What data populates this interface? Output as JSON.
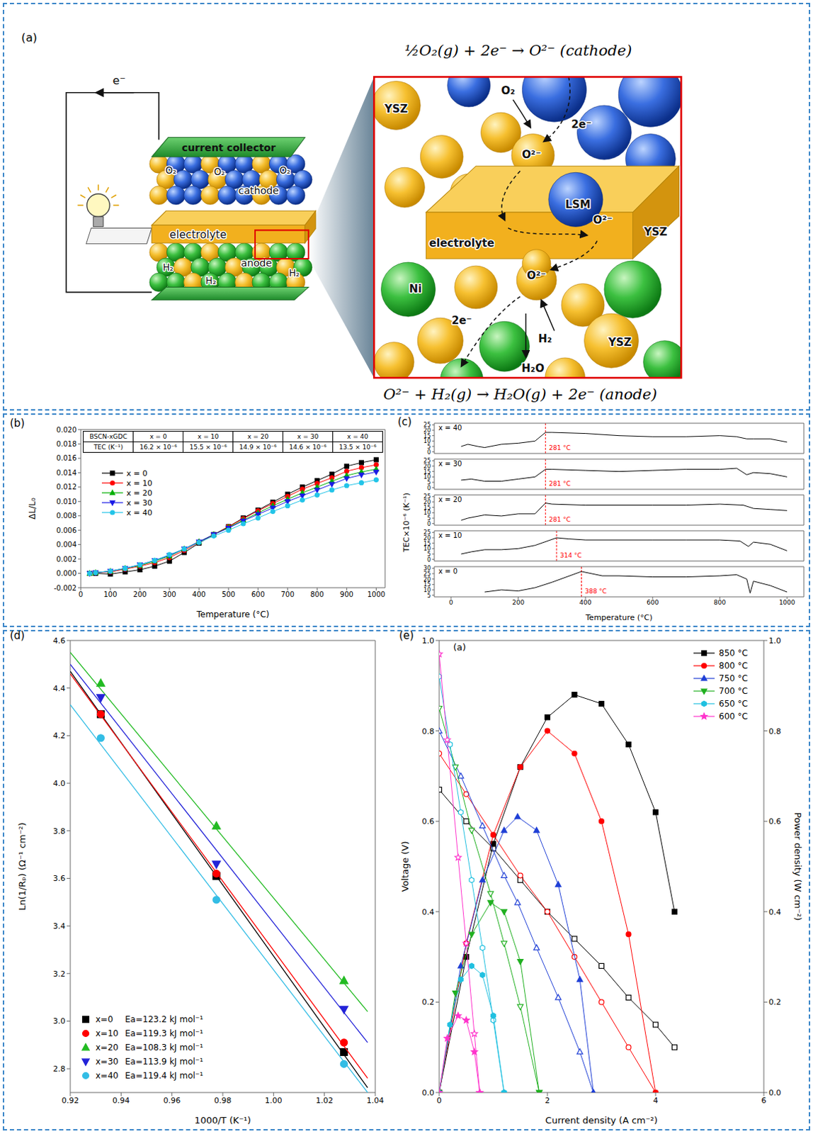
{
  "diagram": {
    "panel": "(a)",
    "equations": {
      "cathode": "½O₂(g) + 2e⁻ → O²⁻ (cathode)",
      "anode": "O²⁻ + H₂(g) → H₂O(g) + 2e⁻ (anode)"
    },
    "cell": {
      "electron": "e⁻",
      "current_collector": "current collector",
      "cathode": "cathode",
      "electrolyte": "electrolyte",
      "anode": "anode",
      "cathode_gas": "O₂",
      "anode_gas": "H₂"
    },
    "zoom": {
      "labels": [
        "YSZ",
        "O₂",
        "2e⁻",
        "O²⁻",
        "LSM",
        "YSZ",
        "electrolyte",
        "O²⁻",
        "Ni",
        "O²⁻",
        "2e⁻",
        "H₂",
        "YSZ",
        "H₂O"
      ]
    }
  },
  "chart_data": [
    {
      "type": "line",
      "panel": "(b)",
      "xlabel": "Temperature (°C)",
      "ylabel": "ΔL/L₀",
      "xlim": [
        0,
        1030
      ],
      "xticks": [
        0,
        100,
        200,
        300,
        400,
        500,
        600,
        700,
        800,
        900,
        1000
      ],
      "ylim": [
        -0.002,
        0.02
      ],
      "yticks": [
        -0.002,
        {
          "value": 0,
          "label": "0.000"
        },
        0.002,
        0.004,
        0.006,
        0.008,
        {
          "value": 0.01,
          "label": "0.010"
        },
        0.012,
        0.014,
        0.016,
        0.018,
        {
          "value": 0.02,
          "label": "0.020"
        }
      ],
      "legend": "upper left",
      "x": [
        30,
        50,
        100,
        150,
        200,
        250,
        300,
        350,
        400,
        450,
        500,
        550,
        600,
        650,
        700,
        750,
        800,
        850,
        900,
        950,
        1000
      ],
      "series": [
        {
          "name": "x = 0",
          "color": "#000000",
          "marker": "square",
          "values": [
            0,
            0,
            -0.0001,
            0.0002,
            0.0005,
            0.001,
            0.0017,
            0.0029,
            0.0042,
            0.0054,
            0.0065,
            0.0077,
            0.0088,
            0.0099,
            0.011,
            0.012,
            0.0129,
            0.0138,
            0.0149,
            0.0154,
            0.0158
          ]
        },
        {
          "name": "x = 10",
          "color": "#ff0000",
          "marker": "circle",
          "values": [
            0,
            0.0001,
            0.0002,
            0.0006,
            0.001,
            0.0015,
            0.0022,
            0.0032,
            0.0043,
            0.0054,
            0.0065,
            0.0076,
            0.0087,
            0.0097,
            0.0107,
            0.0117,
            0.0125,
            0.0133,
            0.0142,
            0.0147,
            0.0151
          ]
        },
        {
          "name": "x = 20",
          "color": "#00b000",
          "marker": "triangle",
          "values": [
            0,
            0.0001,
            0.0003,
            0.0007,
            0.0011,
            0.0017,
            0.0024,
            0.0034,
            0.0044,
            0.0054,
            0.0064,
            0.0074,
            0.0084,
            0.0094,
            0.0103,
            0.0112,
            0.012,
            0.0128,
            0.0136,
            0.0141,
            0.0145
          ]
        },
        {
          "name": "x = 30",
          "color": "#1a1ae6",
          "marker": "triangle-down",
          "values": [
            0,
            0.0001,
            0.0003,
            0.0007,
            0.0012,
            0.0018,
            0.0025,
            0.0034,
            0.0044,
            0.0054,
            0.0063,
            0.0073,
            0.0082,
            0.0091,
            0.01,
            0.0108,
            0.0116,
            0.0124,
            0.0132,
            0.0137,
            0.0141
          ]
        },
        {
          "name": "x = 40",
          "color": "#22c4e8",
          "marker": "circle",
          "values": [
            0,
            0.0001,
            0.0003,
            0.0007,
            0.0012,
            0.0018,
            0.0026,
            0.0034,
            0.0043,
            0.0052,
            0.006,
            0.0069,
            0.0077,
            0.0086,
            0.0094,
            0.0102,
            0.0109,
            0.0116,
            0.0122,
            0.0126,
            0.013
          ]
        }
      ],
      "table": {
        "header": [
          "BSCN-xGDC",
          "x = 0",
          "x = 10",
          "x = 20",
          "x = 30",
          "x = 40"
        ],
        "rows": [
          [
            "TEC (K⁻¹)",
            "16.2 × 10⁻⁶",
            "15.5 × 10⁻⁶",
            "14.9 × 10⁻⁶",
            "14.6 × 10⁻⁶",
            "13.5 × 10⁻⁶"
          ]
        ]
      }
    },
    {
      "type": "line",
      "panel": "(c)",
      "title": "x = 40",
      "color": "#000000",
      "xlim": [
        -50,
        1050
      ],
      "ylim": [
        -1.5,
        26.5
      ],
      "yticks": [
        0,
        5,
        10,
        15,
        20,
        25
      ],
      "tick_labels": "y",
      "x": [
        30,
        50,
        80,
        100,
        150,
        200,
        250,
        281,
        300,
        400,
        500,
        600,
        700,
        800,
        850,
        880,
        900,
        950,
        1000
      ],
      "values": [
        5,
        7,
        5,
        4,
        7,
        8,
        10,
        18,
        18,
        17,
        15,
        14,
        14,
        15,
        14,
        12,
        12,
        12,
        9
      ],
      "annotations": [
        {
          "x": 281,
          "label": "281 °C"
        }
      ]
    },
    {
      "type": "line",
      "title": "x = 30",
      "color": "#000000",
      "xlim": [
        -50,
        1050
      ],
      "ylim": [
        -1.5,
        26.5
      ],
      "yticks": [
        0,
        5,
        10,
        15,
        20,
        25
      ],
      "tick_labels": "y",
      "x": [
        30,
        60,
        100,
        150,
        200,
        250,
        281,
        300,
        400,
        500,
        600,
        700,
        800,
        850,
        880,
        900,
        950,
        1000
      ],
      "values": [
        7,
        8,
        6,
        6,
        8,
        10,
        17,
        17,
        16,
        15,
        16,
        17,
        17,
        18,
        12,
        14,
        13,
        10
      ],
      "annotations": [
        {
          "x": 281,
          "label": "281 °C"
        }
      ]
    },
    {
      "type": "line",
      "title": "x = 20",
      "ylabel": "TEC×10⁻⁶ (K⁻¹)",
      "color": "#000000",
      "xlim": [
        -50,
        1050
      ],
      "ylim": [
        -1.5,
        26.5
      ],
      "yticks": [
        0,
        5,
        10,
        15,
        20,
        25
      ],
      "tick_labels": "y",
      "x": [
        30,
        50,
        100,
        150,
        200,
        250,
        281,
        300,
        400,
        500,
        600,
        700,
        800,
        870,
        900,
        950,
        1000
      ],
      "values": [
        3,
        5,
        8,
        7,
        9,
        9,
        19,
        18,
        17,
        17,
        17,
        17,
        18,
        17,
        14,
        13,
        12
      ],
      "annotations": [
        {
          "x": 281,
          "label": "281 °C"
        }
      ]
    },
    {
      "type": "line",
      "title": "x = 10",
      "color": "#000000",
      "xlim": [
        -50,
        1050
      ],
      "ylim": [
        -1.5,
        26.5
      ],
      "yticks": [
        0,
        5,
        10,
        15,
        20,
        25
      ],
      "tick_labels": "y",
      "x": [
        30,
        60,
        100,
        150,
        200,
        250,
        314,
        350,
        400,
        500,
        600,
        700,
        800,
        860,
        885,
        900,
        950,
        1000
      ],
      "values": [
        5,
        7,
        9,
        9,
        10,
        13,
        20,
        19,
        18,
        18,
        18,
        18,
        18,
        17,
        12,
        16,
        14,
        8
      ],
      "annotations": [
        {
          "x": 314,
          "label": "314 °C"
        }
      ]
    },
    {
      "type": "line",
      "title": "x = 0",
      "xlabel": "Temperature (°C)",
      "color": "#000000",
      "xlim": [
        -50,
        1050
      ],
      "xticks": [
        0,
        200,
        400,
        600,
        800,
        1000
      ],
      "ylim": [
        3.5,
        31.5
      ],
      "yticks": [
        5,
        10,
        15,
        20,
        25,
        30
      ],
      "x": [
        100,
        150,
        200,
        250,
        300,
        388,
        450,
        500,
        600,
        700,
        800,
        850,
        880,
        890,
        900,
        950,
        1000
      ],
      "values": [
        8,
        10,
        9,
        12,
        17,
        27,
        23,
        23,
        22,
        22,
        23,
        24,
        20,
        7,
        18,
        14,
        8
      ],
      "annotations": [
        {
          "x": 388,
          "label": "388 °C"
        }
      ]
    },
    {
      "type": "scatter",
      "panel": "(d)",
      "xlabel": "1000/T (K⁻¹)",
      "ylabel": "Ln(1/Rₚ) (Ω⁻¹ cm⁻²)",
      "xlim": [
        0.92,
        1.04
      ],
      "xticks": [
        0.92,
        0.94,
        0.96,
        0.98,
        {
          "value": 1,
          "label": "1.00"
        },
        1.02,
        1.04
      ],
      "ylim": [
        2.7,
        4.6
      ],
      "yticks": [
        2.8,
        {
          "value": 3,
          "label": "3.0"
        },
        3.2,
        3.4,
        3.6,
        3.8,
        {
          "value": 4,
          "label": "4.0"
        },
        4.2,
        4.4,
        4.6
      ],
      "legend": "lower left",
      "x": [
        0.932,
        0.9775,
        1.0277
      ],
      "series": [
        {
          "name": "x=0",
          "annotation": "Ea=123.2 kJ mol⁻¹",
          "color": "#000000",
          "marker": "square",
          "values": [
            4.29,
            3.61,
            2.87
          ],
          "fit": {
            "x": [
              0.92,
              1.037
            ],
            "values": [
              4.47,
              2.72
            ]
          }
        },
        {
          "name": "x=10",
          "annotation": "Ea=119.3 kJ mol⁻¹",
          "color": "#ff0000",
          "marker": "circle",
          "values": [
            4.29,
            3.62,
            2.91
          ],
          "fit": {
            "x": [
              0.92,
              1.037
            ],
            "values": [
              4.46,
              2.76
            ]
          }
        },
        {
          "name": "x=20",
          "annotation": "Ea=108.3 kJ mol⁻¹",
          "color": "#22bb22",
          "marker": "triangle",
          "values": [
            4.42,
            3.82,
            3.17
          ],
          "fit": {
            "x": [
              0.92,
              1.037
            ],
            "values": [
              4.55,
              3.04
            ]
          }
        },
        {
          "name": "x=30",
          "annotation": "Ea=113.9 kJ mol⁻¹",
          "color": "#2323d8",
          "marker": "triangle-down",
          "values": [
            4.36,
            3.66,
            3.05
          ],
          "fit": {
            "x": [
              0.92,
              1.037
            ],
            "values": [
              4.5,
              2.91
            ]
          }
        },
        {
          "name": "x=40",
          "annotation": "Ea=119.4 kJ mol⁻¹",
          "color": "#33bde5",
          "marker": "circle",
          "values": [
            4.19,
            3.51,
            2.82
          ],
          "fit": {
            "x": [
              0.92,
              1.037
            ],
            "values": [
              4.33,
              2.7
            ]
          }
        }
      ]
    },
    {
      "type": "line",
      "panel": "(e)",
      "subtitle": "(a)",
      "xlabel": "Current density (A cm⁻²)",
      "ylabel": "Voltage (V)",
      "y2label": "Power density (W cm⁻²)",
      "xlim": [
        0,
        6
      ],
      "xticks": [
        0,
        2,
        4,
        6
      ],
      "ylim": [
        0,
        1
      ],
      "yticks": [
        {
          "value": 0,
          "label": "0.0"
        },
        0.2,
        0.4,
        0.6,
        0.8,
        {
          "value": 1,
          "label": "1.0"
        }
      ],
      "y2lim": [
        0,
        1
      ],
      "y2ticks": [
        {
          "value": 0,
          "label": "0.0"
        },
        0.2,
        0.4,
        0.6,
        0.8,
        {
          "value": 1,
          "label": "1.0"
        }
      ],
      "legend": "upper right",
      "series": [
        {
          "name": "850 °C",
          "color": "#000000",
          "marker": "square",
          "x": [
            0,
            0.5,
            1,
            1.5,
            2,
            2.5,
            3,
            3.5,
            4,
            4.35
          ],
          "values": [
            0.67,
            0.6,
            0.54,
            0.47,
            0.4,
            0.34,
            0.28,
            0.21,
            0.15,
            0.1
          ],
          "y2_values": [
            0,
            0.3,
            0.55,
            0.72,
            0.83,
            0.88,
            0.86,
            0.77,
            0.62,
            0.4
          ]
        },
        {
          "name": "800 °C",
          "color": "#ff0000",
          "marker": "circle",
          "x": [
            0,
            0.5,
            1,
            1.5,
            2,
            2.5,
            3,
            3.5,
            4
          ],
          "values": [
            0.75,
            0.66,
            0.57,
            0.48,
            0.4,
            0.3,
            0.2,
            0.1,
            0
          ],
          "y2_values": [
            0,
            0.33,
            0.57,
            0.72,
            0.8,
            0.75,
            0.6,
            0.35,
            0
          ]
        },
        {
          "name": "750 °C",
          "color": "#1f3fd6",
          "marker": "triangle",
          "x": [
            0,
            0.4,
            0.8,
            1.2,
            1.45,
            1.8,
            2.2,
            2.6,
            2.85
          ],
          "values": [
            0.8,
            0.7,
            0.59,
            0.48,
            0.42,
            0.32,
            0.21,
            0.09,
            0
          ],
          "y2_values": [
            0,
            0.28,
            0.47,
            0.58,
            0.61,
            0.58,
            0.46,
            0.25,
            0
          ]
        },
        {
          "name": "700 °C",
          "color": "#20b020",
          "marker": "triangle-down",
          "x": [
            0,
            0.3,
            0.6,
            0.95,
            1.2,
            1.5,
            1.85
          ],
          "values": [
            0.85,
            0.72,
            0.58,
            0.44,
            0.33,
            0.19,
            0
          ],
          "y2_values": [
            0,
            0.22,
            0.35,
            0.42,
            0.4,
            0.29,
            0
          ]
        },
        {
          "name": "650 °C",
          "color": "#20c0e0",
          "marker": "hexagon",
          "x": [
            0,
            0.2,
            0.4,
            0.6,
            0.8,
            1,
            1.2
          ],
          "values": [
            0.92,
            0.77,
            0.62,
            0.47,
            0.32,
            0.16,
            0
          ],
          "y2_values": [
            0,
            0.15,
            0.25,
            0.28,
            0.26,
            0.17,
            0
          ]
        },
        {
          "name": "600 °C",
          "color": "#ff33cc",
          "marker": "star",
          "x": [
            0,
            0.15,
            0.35,
            0.5,
            0.65,
            0.75
          ],
          "values": [
            0.97,
            0.78,
            0.52,
            0.33,
            0.13,
            0
          ],
          "y2_values": [
            0,
            0.12,
            0.17,
            0.16,
            0.09,
            0
          ]
        }
      ]
    }
  ]
}
